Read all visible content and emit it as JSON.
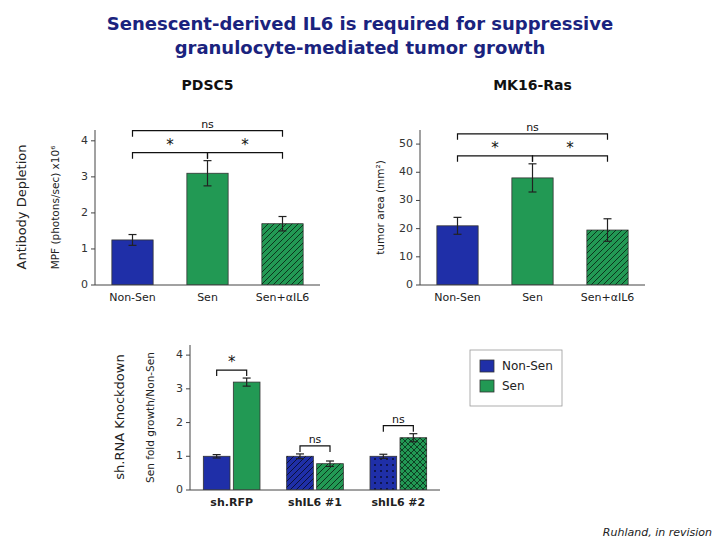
{
  "title": "Senescent-derived IL6 is required for suppressive granulocyte-mediated tumor growth",
  "annotations": [
    "Antibody Depletion",
    "sh.RNA Knockdown",
    "Ruhland, in revision"
  ],
  "chart_data": [
    {
      "type": "bar",
      "title": "PDSC5",
      "categories": [
        "Non-Sen",
        "Sen",
        "Sen+αIL6"
      ],
      "values": [
        1.25,
        3.1,
        1.7
      ],
      "errors": [
        0.15,
        0.35,
        0.2
      ],
      "colors": [
        "#1f2fa8",
        "#229954",
        "#229954"
      ],
      "y_label": "MPF (photons/sec) x10⁶",
      "ylim": [
        0,
        4.3
      ],
      "yticks": [
        0,
        1,
        2,
        3,
        4
      ],
      "grid": false,
      "annotations": [
        {
          "text": "*",
          "categories": [
            "Non-Sen",
            "Sen"
          ]
        },
        {
          "text": "*",
          "categories": [
            "Sen",
            "Sen+αIL6"
          ]
        },
        {
          "text": "ns",
          "categories": [
            "Non-Sen",
            "Sen+αIL6"
          ]
        }
      ]
    },
    {
      "type": "bar",
      "title": "MK16-Ras",
      "categories": [
        "Non-Sen",
        "Sen",
        "Sen+αIL6"
      ],
      "values": [
        21,
        38,
        19.5
      ],
      "errors": [
        3.0,
        5.0,
        4.0
      ],
      "colors": [
        "#1f2fa8",
        "#229954",
        "#229954"
      ],
      "y_label": "tumor area (mm²)",
      "ylim": [
        0,
        55
      ],
      "yticks": [
        0,
        10,
        20,
        30,
        40,
        50
      ],
      "grid": false,
      "annotations": [
        {
          "text": "*",
          "categories": [
            "Non-Sen",
            "Sen"
          ]
        },
        {
          "text": "*",
          "categories": [
            "Sen",
            "Sen+αIL6"
          ]
        },
        {
          "text": "ns",
          "categories": [
            "Non-Sen",
            "Sen+αIL6"
          ]
        }
      ]
    },
    {
      "type": "bar",
      "categories": [
        "sh.RFP",
        "shIL6 #1",
        "shIL6 #2"
      ],
      "series": [
        {
          "name": "Non-Sen",
          "color": "#1f2fa8",
          "values": [
            1.0,
            1.0,
            1.0
          ],
          "errors": [
            0.05,
            0.07,
            0.06
          ]
        },
        {
          "name": "Sen",
          "color": "#229954",
          "values": [
            3.2,
            0.78,
            1.55
          ],
          "errors": [
            0.12,
            0.08,
            0.12
          ]
        }
      ],
      "y_label": "Sen fold growth/Non-Sen",
      "ylim": [
        0,
        4.3
      ],
      "yticks": [
        0,
        1,
        2,
        3,
        4
      ],
      "grid": false,
      "legend": "right",
      "annotations": [
        {
          "text": "*",
          "category": "sh.RFP"
        },
        {
          "text": "ns",
          "category": "shIL6 #1"
        },
        {
          "text": "ns",
          "category": "shIL6 #2"
        }
      ]
    }
  ]
}
